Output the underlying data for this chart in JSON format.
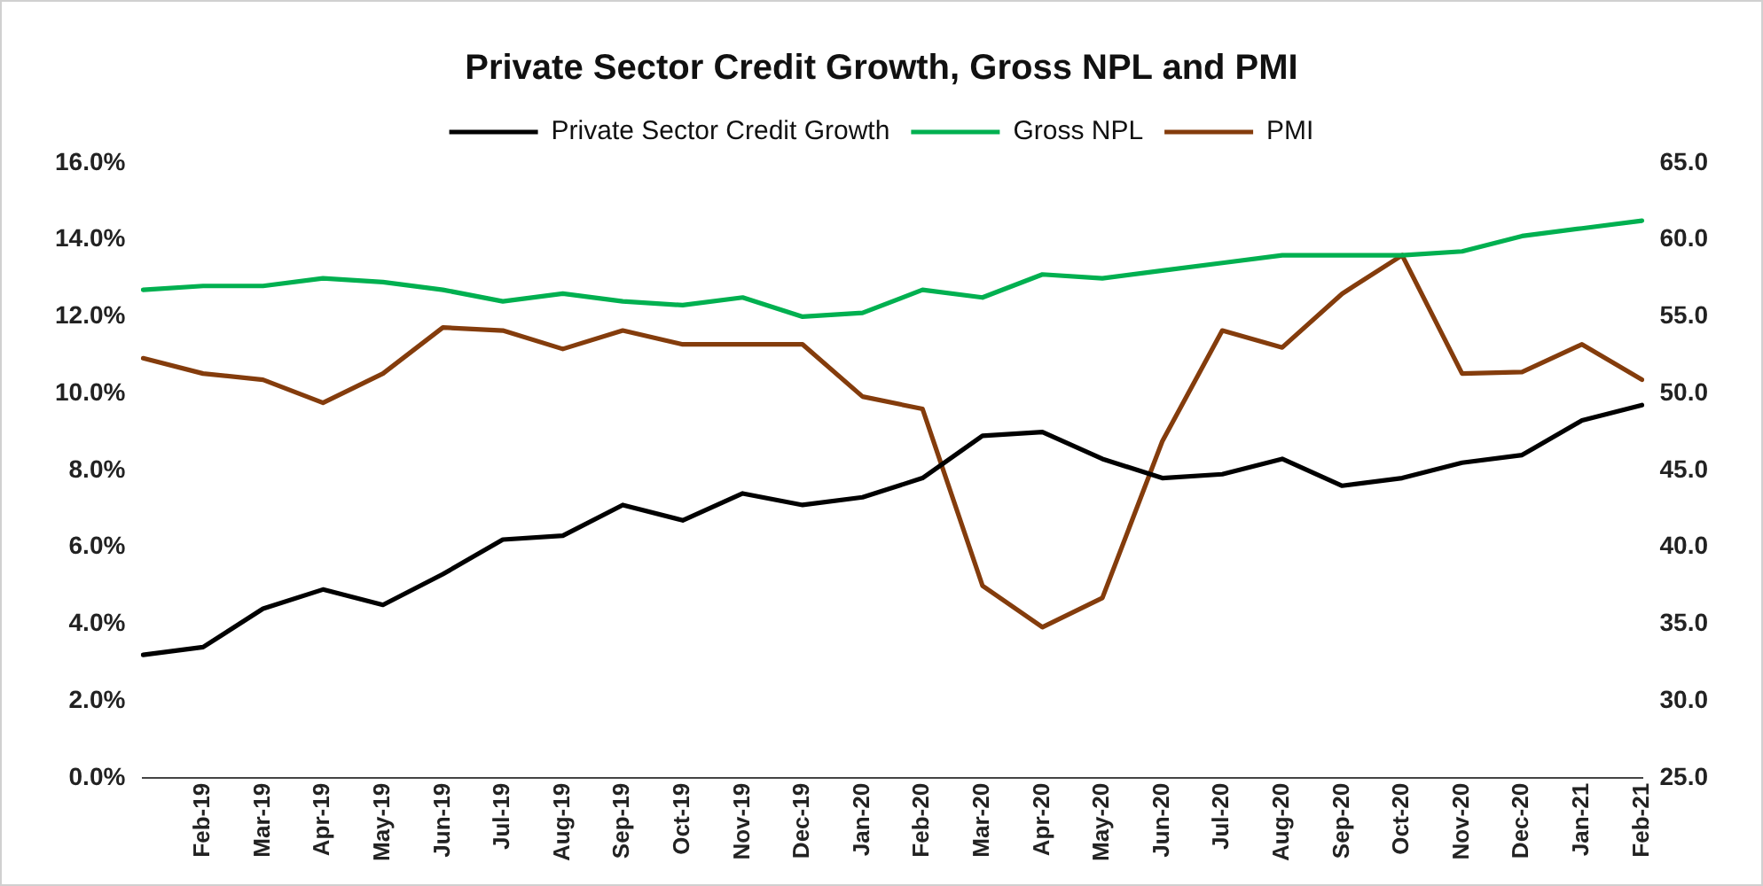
{
  "chart_data": {
    "type": "line",
    "title": "Private Sector Credit Growth, Gross NPL and PMI",
    "categories": [
      null,
      "Feb-19",
      "Mar-19",
      "Apr-19",
      "May-19",
      "Jun-19",
      "Jul-19",
      "Aug-19",
      "Sep-19",
      "Oct-19",
      "Nov-19",
      "Dec-19",
      "Jan-20",
      "Feb-20",
      "Mar-20",
      "Apr-20",
      "May-20",
      "Jun-20",
      "Jul-20",
      "Aug-20",
      "Sep-20",
      "Oct-20",
      "Nov-20",
      "Dec-20",
      "Jan-21",
      "Feb-21"
    ],
    "series": [
      {
        "name": "Private Sector Credit Growth",
        "color": "#000000",
        "values": [
          3.2,
          3.4,
          4.4,
          4.9,
          4.5,
          5.3,
          6.2,
          6.3,
          7.1,
          6.7,
          7.4,
          7.1,
          7.3,
          7.8,
          8.9,
          9.0,
          8.3,
          7.8,
          7.9,
          8.3,
          7.6,
          7.8,
          8.2,
          8.4,
          9.3,
          9.7
        ]
      },
      {
        "name": "Gross NPL",
        "color": "#00b050",
        "values": [
          12.7,
          12.8,
          12.8,
          13.0,
          12.9,
          12.7,
          12.4,
          12.6,
          12.4,
          12.3,
          12.5,
          12.0,
          12.1,
          12.7,
          12.5,
          13.1,
          13.0,
          13.2,
          13.4,
          13.6,
          13.6,
          13.6,
          13.7,
          14.1,
          14.3,
          14.5
        ]
      },
      {
        "name": "PMI",
        "color": "#843c0c",
        "axis": "y2",
        "values": [
          52.3,
          51.3,
          50.9,
          49.4,
          51.3,
          54.3,
          54.1,
          52.9,
          54.1,
          53.2,
          53.2,
          53.2,
          49.8,
          49.0,
          37.5,
          34.8,
          36.7,
          46.9,
          54.1,
          53.0,
          56.5,
          59.0,
          51.3,
          51.4,
          53.2,
          50.9
        ]
      }
    ],
    "ylim": [
      0,
      16
    ],
    "yticks": [
      {
        "value": 0,
        "label": "0.0%"
      },
      {
        "value": 2,
        "label": "2.0%"
      },
      {
        "value": 4,
        "label": "4.0%"
      },
      {
        "value": 6,
        "label": "6.0%"
      },
      {
        "value": 8,
        "label": "8.0%"
      },
      {
        "value": 10,
        "label": "10.0%"
      },
      {
        "value": 12,
        "label": "12.0%"
      },
      {
        "value": 14,
        "label": "14.0%"
      },
      {
        "value": 16,
        "label": "16.0%"
      }
    ],
    "y2lim": [
      25,
      65
    ],
    "y2ticks": [
      {
        "value": 25,
        "label": "25.0"
      },
      {
        "value": 30,
        "label": "30.0"
      },
      {
        "value": 35,
        "label": "35.0"
      },
      {
        "value": 40,
        "label": "40.0"
      },
      {
        "value": 45,
        "label": "45.0"
      },
      {
        "value": 50,
        "label": "50.0"
      },
      {
        "value": 55,
        "label": "55.0"
      },
      {
        "value": 60,
        "label": "60.0"
      },
      {
        "value": 65,
        "label": "65.0"
      }
    ],
    "grid": false,
    "legend": "top",
    "marker": "none",
    "line_style": "solid"
  }
}
